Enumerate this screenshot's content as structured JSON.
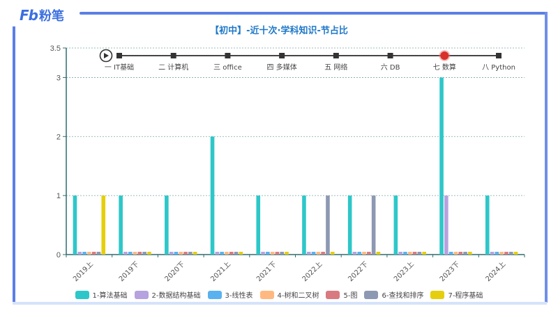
{
  "brand": {
    "logo_mark": "Fb",
    "logo_name": "粉笔",
    "color": "#3b6fe0"
  },
  "header": {
    "title": "【初中】-近十次·学科知识-节占比"
  },
  "timeline": {
    "play_icon": "play-icon",
    "items": [
      {
        "label": "一 IT基础",
        "active": false
      },
      {
        "label": "二 计算机",
        "active": false
      },
      {
        "label": "三 office",
        "active": false
      },
      {
        "label": "四 多媒体",
        "active": false
      },
      {
        "label": "五 网络",
        "active": false
      },
      {
        "label": "六 DB",
        "active": false
      },
      {
        "label": "七 数算",
        "active": true
      },
      {
        "label": "八 Python",
        "active": false
      }
    ],
    "active_color": "#d9302c"
  },
  "chart_data": {
    "type": "bar",
    "title": "【初中】-近十次·学科知识-节占比",
    "xlabel": "",
    "ylabel": "",
    "ylim": [
      0,
      3.5
    ],
    "yticks": [
      0,
      1,
      2,
      3,
      3.5
    ],
    "grid": true,
    "legend_position": "bottom",
    "categories": [
      "2019上",
      "2019下",
      "2020下",
      "2021上",
      "2021下",
      "2022上",
      "2022下",
      "2023上",
      "2023下",
      "2024上"
    ],
    "series": [
      {
        "name": "1-算法基础",
        "color": "#2ec7c9",
        "values": [
          1,
          1,
          1,
          2,
          1,
          1,
          1,
          1,
          3,
          1
        ]
      },
      {
        "name": "2-数据结构基础",
        "color": "#b6a2de",
        "values": [
          0,
          0,
          0,
          0,
          0,
          0,
          0,
          0,
          1,
          0
        ]
      },
      {
        "name": "3-线性表",
        "color": "#5ab1ef",
        "values": [
          0,
          0,
          0,
          0,
          0,
          0,
          0,
          0,
          0,
          0
        ]
      },
      {
        "name": "4-树和二叉树",
        "color": "#ffb980",
        "values": [
          0,
          0,
          0,
          0,
          0,
          0,
          0,
          0,
          0,
          0
        ]
      },
      {
        "name": "5-图",
        "color": "#d87a80",
        "values": [
          0,
          0,
          0,
          0,
          0,
          0,
          0,
          0,
          0,
          0
        ]
      },
      {
        "name": "6-查找和排序",
        "color": "#8d98b3",
        "values": [
          0,
          0,
          0,
          0,
          0,
          1,
          1,
          0,
          0,
          0
        ]
      },
      {
        "name": "7-程序基础",
        "color": "#e5cf0d",
        "values": [
          1,
          0,
          0,
          0,
          0,
          0,
          0,
          0,
          0,
          0
        ]
      }
    ]
  }
}
